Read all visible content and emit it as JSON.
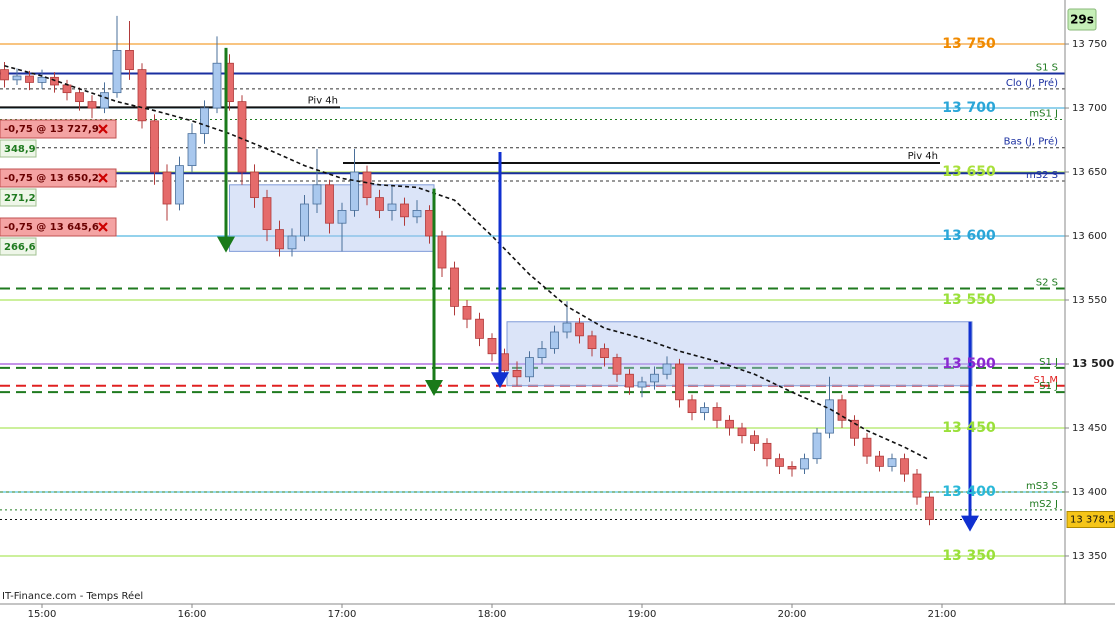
{
  "chart_data": {
    "type": "candlestick",
    "badge": "29s",
    "source": "IT-Finance.com - Temps Réel",
    "up_color": "#a9c8ee",
    "down_color": "#e56b6b",
    "xlim": [
      883.2,
      1309.2
    ],
    "ylim": [
      13315.6,
      13784.4
    ],
    "xticks": [
      {
        "value": 900,
        "label": "15:00"
      },
      {
        "value": 960,
        "label": "16:00"
      },
      {
        "value": 1020,
        "label": "17:00"
      },
      {
        "value": 1080,
        "label": "18:00"
      },
      {
        "value": 1140,
        "label": "19:00"
      },
      {
        "value": 1200,
        "label": "20:00"
      },
      {
        "value": 1260,
        "label": "21:00"
      }
    ],
    "yticks": [
      {
        "value": 13750,
        "label": "13 750"
      },
      {
        "value": 13700,
        "label": "13 700"
      },
      {
        "value": 13650,
        "label": "13 650"
      },
      {
        "value": 13600,
        "label": "13 600"
      },
      {
        "value": 13550,
        "label": "13 550"
      },
      {
        "value": 13500,
        "label": "13 500",
        "bold": true
      },
      {
        "value": 13450,
        "label": "13 450"
      },
      {
        "value": 13400,
        "label": "13 400"
      },
      {
        "value": 13350,
        "label": "13 350"
      }
    ],
    "x": [
      885,
      890,
      895,
      900,
      905,
      910,
      915,
      920,
      925,
      930,
      935,
      940,
      945,
      950,
      955,
      960,
      965,
      970,
      975,
      980,
      985,
      990,
      995,
      1000,
      1005,
      1010,
      1015,
      1020,
      1025,
      1030,
      1035,
      1040,
      1045,
      1050,
      1055,
      1060,
      1065,
      1070,
      1075,
      1080,
      1085,
      1090,
      1095,
      1100,
      1105,
      1110,
      1115,
      1120,
      1125,
      1130,
      1135,
      1140,
      1145,
      1150,
      1155,
      1160,
      1165,
      1170,
      1175,
      1180,
      1185,
      1190,
      1195,
      1200,
      1205,
      1210,
      1215,
      1220,
      1225,
      1230,
      1235,
      1240,
      1245,
      1250,
      1255
    ],
    "ohlc": [
      [
        13730,
        13736,
        13716,
        13722
      ],
      [
        13722,
        13731,
        13718,
        13725
      ],
      [
        13725,
        13729,
        13714,
        13720
      ],
      [
        13720,
        13730,
        13715,
        13724
      ],
      [
        13724,
        13728,
        13712,
        13718
      ],
      [
        13718,
        13722,
        13706,
        13712
      ],
      [
        13712,
        13716,
        13698,
        13705
      ],
      [
        13705,
        13710,
        13692,
        13700
      ],
      [
        13700,
        13720,
        13696,
        13712
      ],
      [
        13712,
        13772,
        13708,
        13745
      ],
      [
        13745,
        13768,
        13722,
        13730
      ],
      [
        13730,
        13735,
        13684,
        13690
      ],
      [
        13690,
        13695,
        13640,
        13650
      ],
      [
        13650,
        13656,
        13612,
        13625
      ],
      [
        13625,
        13662,
        13620,
        13655
      ],
      [
        13655,
        13688,
        13650,
        13680
      ],
      [
        13680,
        13706,
        13672,
        13700
      ],
      [
        13700,
        13756,
        13696,
        13735
      ],
      [
        13735,
        13742,
        13698,
        13705
      ],
      [
        13705,
        13710,
        13640,
        13650
      ],
      [
        13650,
        13656,
        13622,
        13630
      ],
      [
        13630,
        13636,
        13596,
        13605
      ],
      [
        13605,
        13612,
        13584,
        13590
      ],
      [
        13590,
        13606,
        13584,
        13600
      ],
      [
        13600,
        13632,
        13596,
        13625
      ],
      [
        13625,
        13668,
        13618,
        13640
      ],
      [
        13640,
        13644,
        13602,
        13610
      ],
      [
        13610,
        13626,
        13588,
        13620
      ],
      [
        13620,
        13668,
        13615,
        13650
      ],
      [
        13650,
        13655,
        13624,
        13630
      ],
      [
        13630,
        13636,
        13614,
        13620
      ],
      [
        13620,
        13640,
        13612,
        13625
      ],
      [
        13625,
        13630,
        13608,
        13615
      ],
      [
        13615,
        13628,
        13610,
        13620
      ],
      [
        13620,
        13624,
        13594,
        13600
      ],
      [
        13600,
        13604,
        13568,
        13575
      ],
      [
        13575,
        13580,
        13538,
        13545
      ],
      [
        13545,
        13550,
        13528,
        13535
      ],
      [
        13535,
        13540,
        13514,
        13520
      ],
      [
        13520,
        13524,
        13502,
        13508
      ],
      [
        13508,
        13512,
        13488,
        13495
      ],
      [
        13495,
        13502,
        13483,
        13490
      ],
      [
        13490,
        13510,
        13486,
        13505
      ],
      [
        13505,
        13518,
        13500,
        13512
      ],
      [
        13512,
        13530,
        13508,
        13525
      ],
      [
        13525,
        13549,
        13520,
        13532
      ],
      [
        13532,
        13536,
        13516,
        13522
      ],
      [
        13522,
        13526,
        13506,
        13512
      ],
      [
        13512,
        13516,
        13498,
        13505
      ],
      [
        13505,
        13508,
        13486,
        13492
      ],
      [
        13492,
        13496,
        13476,
        13482
      ],
      [
        13482,
        13490,
        13474,
        13486
      ],
      [
        13486,
        13498,
        13480,
        13492
      ],
      [
        13492,
        13506,
        13488,
        13500
      ],
      [
        13500,
        13504,
        13466,
        13472
      ],
      [
        13472,
        13476,
        13456,
        13462
      ],
      [
        13462,
        13470,
        13456,
        13466
      ],
      [
        13466,
        13470,
        13450,
        13456
      ],
      [
        13456,
        13460,
        13444,
        13450
      ],
      [
        13450,
        13454,
        13438,
        13444
      ],
      [
        13444,
        13448,
        13432,
        13438
      ],
      [
        13438,
        13442,
        13420,
        13426
      ],
      [
        13426,
        13430,
        13414,
        13420
      ],
      [
        13420,
        13424,
        13412,
        13418
      ],
      [
        13418,
        13430,
        13414,
        13426
      ],
      [
        13426,
        13450,
        13422,
        13446
      ],
      [
        13446,
        13490,
        13442,
        13472
      ],
      [
        13472,
        13476,
        13450,
        13456
      ],
      [
        13456,
        13460,
        13436,
        13442
      ],
      [
        13442,
        13446,
        13422,
        13428
      ],
      [
        13428,
        13432,
        13416,
        13420
      ],
      [
        13420,
        13430,
        13416,
        13426
      ],
      [
        13426,
        13430,
        13408,
        13414
      ],
      [
        13414,
        13418,
        13390,
        13396
      ],
      [
        13396,
        13400,
        13374,
        13378.5
      ]
    ],
    "moving_average": {
      "color": "#111111",
      "x": [
        885,
        900,
        915,
        930,
        945,
        960,
        975,
        990,
        1005,
        1020,
        1035,
        1050,
        1065,
        1080,
        1095,
        1110,
        1125,
        1140,
        1155,
        1170,
        1185,
        1200,
        1215,
        1230,
        1245,
        1255
      ],
      "values": [
        13733,
        13725,
        13715,
        13705,
        13698,
        13690,
        13680,
        13668,
        13655,
        13645,
        13640,
        13638,
        13628,
        13600,
        13570,
        13545,
        13528,
        13520,
        13510,
        13502,
        13492,
        13478,
        13465,
        13448,
        13435,
        13425
      ]
    },
    "price_levels": [
      {
        "value": 13750,
        "label": "13 750",
        "color": "#f08a00"
      },
      {
        "value": 13700,
        "label": "13 700",
        "color": "#2aa6d8"
      },
      {
        "value": 13650,
        "label": "13 650",
        "color": "#a8e03a"
      },
      {
        "value": 13600,
        "label": "13 600",
        "color": "#2aa6d8"
      },
      {
        "value": 13550,
        "label": "13 550",
        "color": "#9ae03a"
      },
      {
        "value": 13500,
        "label": "13 500",
        "color": "#8a2ad0"
      },
      {
        "value": 13450,
        "label": "13 450",
        "color": "#9ae03a"
      },
      {
        "value": 13400,
        "label": "13 400",
        "color": "#2ab8d8"
      },
      {
        "value": 13350,
        "label": "13 350",
        "color": "#9ae03a"
      }
    ],
    "reference_lines": [
      {
        "value": 13727,
        "label": "S1 S",
        "color": "#1f7a1f",
        "dash": "10 6",
        "width": 2
      },
      {
        "value": 13727,
        "color": "#1a2fa0",
        "dash": "none",
        "width": 2
      },
      {
        "value": 13715,
        "label": "Clo (J, Pré)",
        "color": "#333333",
        "dash": "3 3",
        "width": 1,
        "label_color": "#1a2fa0"
      },
      {
        "value": 13691,
        "label": "mS1 J",
        "color": "#1f7a1f",
        "dash": "2 3",
        "width": 1
      },
      {
        "value": 13669,
        "label": "Bas (J, Pré)",
        "color": "#333333",
        "dash": "3 3",
        "width": 1,
        "label_color": "#1a2fa0"
      },
      {
        "value": 13649,
        "color": "#1a2fa0",
        "dash": "none",
        "width": 2
      },
      {
        "value": 13643,
        "label": "mS2 S",
        "color": "#333333",
        "dash": "3 3",
        "width": 1,
        "label_color": "#1a2fa0"
      },
      {
        "value": 13559,
        "label": "S2 S",
        "color": "#1f7a1f",
        "dash": "10 6",
        "width": 2
      },
      {
        "value": 13497,
        "label": "S1 J",
        "color": "#1f7a1f",
        "dash": "10 6",
        "width": 2
      },
      {
        "value": 13483,
        "label": "S1 M",
        "color": "#e02020",
        "dash": "10 6",
        "width": 2
      },
      {
        "value": 13478,
        "label": "S1 J",
        "color": "#1f7a1f",
        "dash": "10 6",
        "width": 2
      },
      {
        "value": 13400,
        "label": "mS3 S",
        "color": "#1f7a1f",
        "dash": "3 3",
        "width": 1
      },
      {
        "value": 13386,
        "label": "mS2 J",
        "color": "#1f7a1f",
        "dash": "2 3",
        "width": 1
      },
      {
        "value": 13378.5,
        "color": "#111111",
        "dash": "2 3",
        "width": 1
      }
    ],
    "pivots_4h": [
      {
        "label": "Piv 4h",
        "value": 13700.5,
        "x": [
          883.2,
          1019.2
        ]
      },
      {
        "label": "Piv 4h",
        "value": 13657,
        "x": [
          1020.4,
          1259.2
        ]
      }
    ],
    "zones": [
      {
        "x": [
          975,
          1056.8
        ],
        "y": [
          13588,
          13640
        ]
      },
      {
        "x": [
          1086,
          1272
        ],
        "y": [
          13483,
          13533
        ]
      }
    ],
    "arrows": [
      {
        "x": 973.6,
        "from": 13747,
        "to": 13587,
        "color": "#1a7a1a"
      },
      {
        "x": 1056.8,
        "from": 13637,
        "to": 13475,
        "color": "#1a7a1a"
      },
      {
        "x": 1083.2,
        "from": 13665.6,
        "to": 13481,
        "color": "#1030d0"
      },
      {
        "x": 1271.2,
        "from": 13533,
        "to": 13369,
        "color": "#1030d0"
      }
    ],
    "orders": [
      {
        "label": "-0,75 @ 13 727,9",
        "pnl": "348,9"
      },
      {
        "label": "-0,75 @ 13 650,2",
        "pnl": "271,2"
      },
      {
        "label": "-0,75 @ 13 645,6",
        "pnl": "266,6"
      }
    ],
    "last_price": {
      "value": 13378.5,
      "label": "13 378,5"
    }
  }
}
